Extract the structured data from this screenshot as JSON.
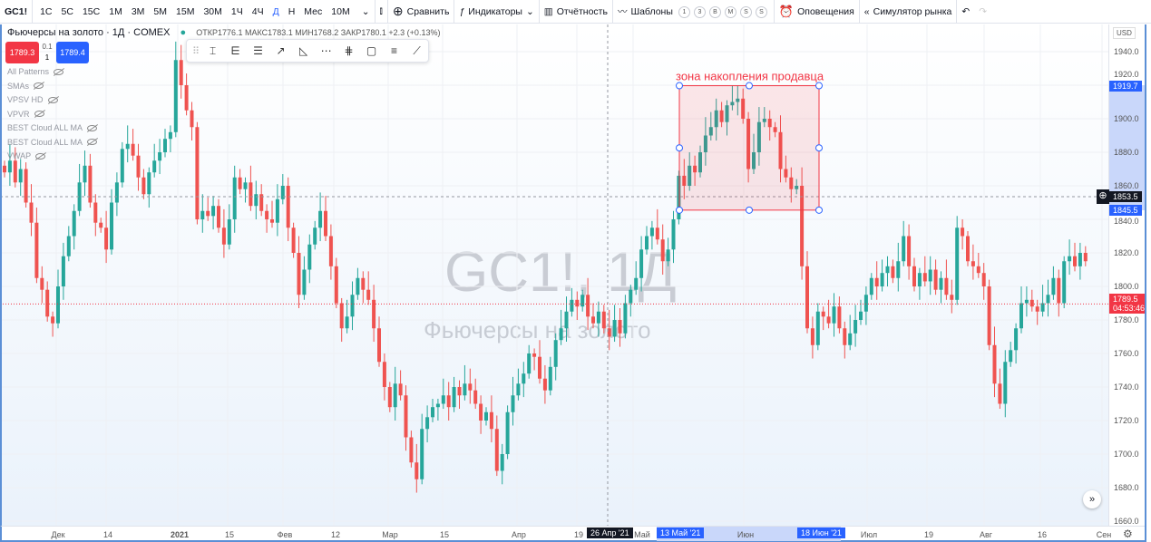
{
  "toolbar": {
    "symbol": "GC1!",
    "intervals": [
      "1С",
      "5С",
      "15С",
      "1М",
      "3М",
      "5М",
      "15М",
      "30М",
      "1Ч",
      "4Ч",
      "Д",
      "Н",
      "Мес",
      "10М"
    ],
    "active_interval": "Д",
    "compare": "Сравнить",
    "indicators": "Индикаторы",
    "reports": "Отчётность",
    "templates": "Шаблоны",
    "quick": [
      "1",
      "3",
      "B",
      "M",
      "S",
      "S"
    ],
    "alerts": "Оповещения",
    "replay": "Симулятор рынка"
  },
  "legend": {
    "title": "Фьючерсы на золото · 1Д · COMEX",
    "ohlc": "ОТКР1776.1 МАКС1783.1 МИН1768.2 ЗАКР1780.1 +2.3 (+0.13%)",
    "sell": "1789.3",
    "spread_top": "0.1",
    "spread_bottom": "1",
    "buy": "1789.4"
  },
  "indicators": [
    "All Patterns",
    "SMAs",
    "VPSV HD",
    "VPVR",
    "BEST Cloud ALL MA",
    "BEST Cloud ALL MA",
    "VWAP"
  ],
  "watermark": {
    "line1": "GC1!, 1Д",
    "line2": "Фьючерсы на золото"
  },
  "annotation": {
    "text": "зона накопления продавца",
    "top_price": 1919.7,
    "bottom_price": 1845.5,
    "color": "#f23645"
  },
  "price_axis": {
    "currency": "USD",
    "labels": [
      "1940.0",
      "1920.0",
      "1900.0",
      "1880.0",
      "1860.0",
      "1840.0",
      "1820.0",
      "1800.0",
      "1780.0",
      "1760.0",
      "1740.0",
      "1720.0",
      "1700.0",
      "1680.0",
      "1660.0"
    ],
    "range": [
      1660,
      1940
    ],
    "crosshair": "1853.5",
    "zone_top": "1919.7",
    "zone_bottom": "1845.5",
    "last": "1789.5",
    "countdown": "04:53:46"
  },
  "time_axis": {
    "labels": [
      "Дек",
      "14",
      "2021",
      "15",
      "Фев",
      "12",
      "Мар",
      "15",
      "Апр",
      "19",
      "Май",
      "Июн",
      "Июл",
      "19",
      "Авг",
      "16",
      "Сен"
    ],
    "crosshair": "26 Апр '21",
    "zone_start": "13 Май '21",
    "zone_end": "18 Июн '21"
  },
  "colors": {
    "up": "#26a69a",
    "down": "#ef5350",
    "accent": "#2962ff"
  },
  "closes": [
    1868,
    1875,
    1862,
    1870,
    1850,
    1838,
    1805,
    1798,
    1782,
    1778,
    1800,
    1818,
    1830,
    1845,
    1862,
    1872,
    1850,
    1838,
    1835,
    1822,
    1850,
    1862,
    1882,
    1885,
    1878,
    1865,
    1855,
    1868,
    1875,
    1880,
    1888,
    1892,
    1935,
    1920,
    1905,
    1895,
    1840,
    1845,
    1842,
    1848,
    1835,
    1825,
    1840,
    1865,
    1858,
    1862,
    1848,
    1855,
    1845,
    1840,
    1838,
    1852,
    1860,
    1835,
    1820,
    1795,
    1810,
    1825,
    1835,
    1845,
    1830,
    1812,
    1790,
    1775,
    1782,
    1795,
    1805,
    1798,
    1792,
    1775,
    1755,
    1740,
    1728,
    1742,
    1735,
    1710,
    1695,
    1685,
    1715,
    1722,
    1728,
    1730,
    1735,
    1728,
    1740,
    1735,
    1742,
    1738,
    1730,
    1720,
    1725,
    1715,
    1690,
    1700,
    1725,
    1735,
    1742,
    1748,
    1760,
    1758,
    1745,
    1738,
    1752,
    1768,
    1775,
    1785,
    1792,
    1788,
    1795,
    1782,
    1778,
    1785,
    1775,
    1770,
    1780,
    1772,
    1790,
    1798,
    1805,
    1822,
    1830,
    1835,
    1828,
    1815,
    1822,
    1840,
    1866,
    1860,
    1872,
    1868,
    1880,
    1890,
    1895,
    1905,
    1898,
    1908,
    1910,
    1912,
    1900,
    1870,
    1880,
    1898,
    1900,
    1895,
    1892,
    1870,
    1865,
    1858,
    1860,
    1812,
    1775,
    1765,
    1785,
    1782,
    1778,
    1788,
    1775,
    1765,
    1772,
    1780,
    1785,
    1795,
    1805,
    1800,
    1808,
    1812,
    1805,
    1815,
    1830,
    1812,
    1800,
    1808,
    1803,
    1810,
    1798,
    1805,
    1795,
    1792,
    1835,
    1830,
    1815,
    1812,
    1808,
    1800,
    1765,
    1742,
    1730,
    1755,
    1762,
    1775,
    1790,
    1792,
    1788,
    1785,
    1790,
    1795,
    1805,
    1790,
    1815,
    1818,
    1812,
    1820,
    1815
  ]
}
